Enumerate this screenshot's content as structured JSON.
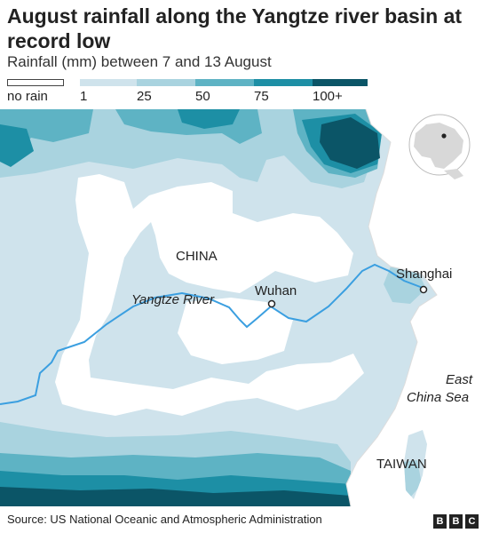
{
  "title": "August rainfall along the Yangtze river basin at record low",
  "subtitle": "Rainfall (mm) between 7 and 13 August",
  "legend": {
    "no_rain": "no rain",
    "ticks": [
      "1",
      "25",
      "50",
      "75",
      "100+"
    ],
    "colors": {
      "no_rain": "#ffffff",
      "band_1": "#cfe3ec",
      "band_25": "#a9d3df",
      "band_50": "#5eb3c4",
      "band_75": "#1d8fa5",
      "band_100": "#0b5567"
    }
  },
  "map": {
    "labels": {
      "china": "CHINA",
      "yangtze": "Yangtze River",
      "wuhan": "Wuhan",
      "shanghai": "Shanghai",
      "east_china_sea": [
        "East",
        "China Sea"
      ],
      "taiwan": "TAIWAN"
    },
    "river_color": "#3b9fe0",
    "sea_color": "#ffffff",
    "locator_globe": true
  },
  "footer": {
    "source": "Source: US National Oceanic and Atmospheric Administration",
    "logo_letters": [
      "B",
      "B",
      "C"
    ]
  }
}
